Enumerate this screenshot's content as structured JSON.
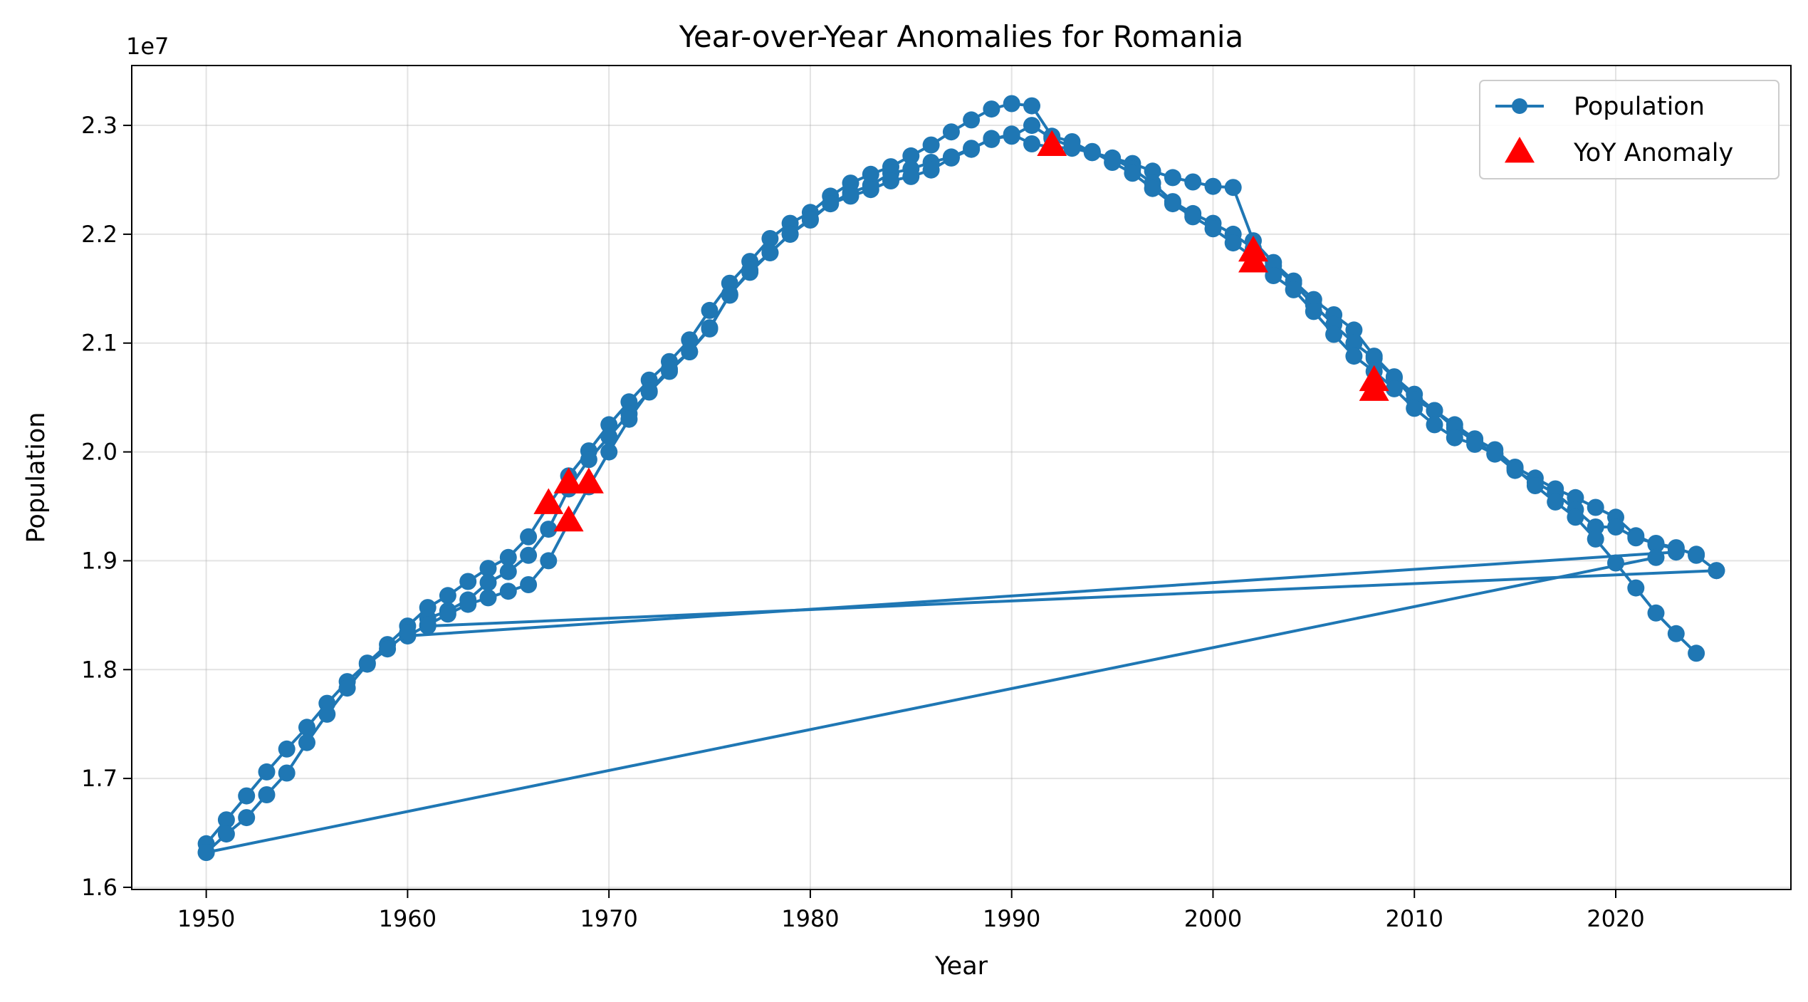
{
  "chart_data": {
    "type": "line",
    "title": "Year-over-Year Anomalies for Romania",
    "xlabel": "Year",
    "ylabel": "Population",
    "y_offset_label": "1e7",
    "xlim": [
      1946.3,
      2028.7
    ],
    "ylim": [
      15980000,
      23550000
    ],
    "x_ticks": [
      1950,
      1960,
      1970,
      1980,
      1990,
      2000,
      2010,
      2020
    ],
    "x_tick_labels": [
      "1950",
      "1960",
      "1970",
      "1980",
      "1990",
      "2000",
      "2010",
      "2020"
    ],
    "y_ticks": [
      16000000,
      17000000,
      18000000,
      19000000,
      20000000,
      21000000,
      22000000,
      23000000
    ],
    "y_tick_labels": [
      "1.6",
      "1.7",
      "1.8",
      "1.9",
      "2.0",
      "2.1",
      "2.2",
      "2.3"
    ],
    "grid": true,
    "legend_position": "top-right",
    "colors": {
      "line": "#1f77b4",
      "anomaly": "#ff0000"
    },
    "series": [
      {
        "name": "Population",
        "marker": "circle",
        "segments": [
          {
            "x": [
              1950,
              1951,
              1952,
              1953,
              1954,
              1955,
              1956,
              1957,
              1958,
              1959,
              1960,
              1961,
              1962,
              1963,
              1964,
              1965,
              1966,
              1967,
              1968,
              1969,
              1970,
              1971,
              1972,
              1973,
              1974,
              1975,
              1976,
              1977,
              1978,
              1979,
              1980,
              1981,
              1982,
              1983,
              1984,
              1985,
              1986,
              1987,
              1988,
              1989,
              1990,
              1991,
              1992,
              1993,
              1994,
              1995,
              1996,
              1997,
              1998,
              1999,
              2000,
              2001,
              2002,
              2003,
              2004,
              2005,
              2006,
              2007,
              2008,
              2009,
              2010,
              2011,
              2012,
              2013,
              2014,
              2015,
              2016,
              2017,
              2018,
              2019,
              2020,
              2021,
              2022,
              2023,
              2024
            ],
            "y": [
              16400000,
              16620000,
              16840000,
              17060000,
              17270000,
              17470000,
              17690000,
              17890000,
              18060000,
              18230000,
              18400000,
              18570000,
              18680000,
              18810000,
              18930000,
              19030000,
              19220000,
              19510000,
              19780000,
              20010000,
              20250000,
              20460000,
              20660000,
              20830000,
              21030000,
              21300000,
              21550000,
              21750000,
              21960000,
              22100000,
              22200000,
              22350000,
              22470000,
              22550000,
              22620000,
              22720000,
              22820000,
              22940000,
              23050000,
              23150000,
              23200000,
              23180000,
              22900000,
              22850000,
              22750000,
              22700000,
              22650000,
              22580000,
              22520000,
              22480000,
              22440000,
              22430000,
              21940000,
              21740000,
              21570000,
              21400000,
              21260000,
              21120000,
              20880000,
              20690000,
              20530000,
              20380000,
              20250000,
              20120000,
              20020000,
              19860000,
              19760000,
              19660000,
              19580000,
              19490000,
              19400000,
              19230000,
              19150000,
              19110000,
              19060000
            ]
          },
          {
            "x": [
              2025,
              1961
            ],
            "y": [
              18910000,
              18400000
            ]
          },
          {
            "x": [
              1961,
              1962,
              1963,
              1964,
              1965,
              1966,
              1967,
              1968,
              1969,
              1970,
              1971,
              1972,
              1973,
              1974,
              1975,
              1976,
              1977,
              1978,
              1979,
              1980,
              1981,
              1982,
              1983,
              1984,
              1985,
              1986,
              1987,
              1988,
              1989,
              1990,
              1991,
              1992,
              1993,
              1994,
              1995,
              1996,
              1997,
              1998,
              1999,
              2000,
              2001,
              2002,
              2003,
              2004,
              2005,
              2006,
              2007,
              2008,
              2009,
              2010,
              2011,
              2012,
              2013,
              2014,
              2015,
              2016,
              2017,
              2018,
              2019,
              2020,
              2021,
              2022,
              2023,
              2024,
              2025
            ],
            "y": [
              18470000,
              18540000,
              18640000,
              18800000,
              18900000,
              19050000,
              19290000,
              19660000,
              19930000,
              20140000,
              20350000,
              20550000,
              20740000,
              20920000,
              21130000,
              21450000,
              21650000,
              21830000,
              22000000,
              22140000,
              22280000,
              22380000,
              22450000,
              22560000,
              22600000,
              22660000,
              22710000,
              22790000,
              22870000,
              22920000,
              22830000,
              22800000,
              22790000,
              22750000,
              22700000,
              22600000,
              22470000,
              22300000,
              22190000,
              22100000,
              22000000,
              21870000,
              21710000,
              21550000,
              21350000,
              21170000,
              21000000,
              20860000,
              20680000,
              20480000,
              20380000,
              20220000,
              20100000,
              19980000,
              19830000,
              19720000,
              19620000,
              19470000,
              19310000,
              19310000,
              19210000,
              19160000,
              19120000,
              19050000,
              18910000
            ]
          },
          {
            "x": [
              2023,
              1960
            ],
            "y": [
              19080000,
              18310000
            ]
          },
          {
            "x": [
              1960,
              1961,
              1962,
              1963,
              1964,
              1965,
              1966,
              1967,
              1968,
              1969,
              1970,
              1971,
              1972,
              1973,
              1974,
              1975,
              1976,
              1977,
              1978,
              1979,
              1980,
              1981,
              1982,
              1983,
              1984,
              1985,
              1986,
              1987,
              1988,
              1989,
              1990,
              1991,
              1992,
              1993,
              1994,
              1995,
              1996,
              1997,
              1998,
              1999,
              2000,
              2001,
              2002,
              2003,
              2004,
              2005,
              2006,
              2007,
              2008,
              2009,
              2010,
              2011,
              2012,
              2013,
              2014,
              2015,
              2016,
              2017,
              2018,
              2019,
              2020,
              2021,
              2022,
              2023,
              2024
            ],
            "y": [
              18310000,
              18410000,
              18510000,
              18600000,
              18660000,
              18720000,
              18780000,
              19000000,
              19350000,
              19680000,
              20000000,
              20300000,
              20560000,
              20760000,
              20920000,
              21140000,
              21440000,
              21670000,
              21830000,
              22000000,
              22130000,
              22280000,
              22350000,
              22410000,
              22490000,
              22530000,
              22590000,
              22700000,
              22780000,
              22880000,
              22900000,
              23000000,
              22880000,
              22800000,
              22760000,
              22660000,
              22560000,
              22420000,
              22280000,
              22160000,
              22050000,
              21920000,
              21790000,
              21620000,
              21490000,
              21290000,
              21080000,
              20880000,
              20740000,
              20580000,
              20400000,
              20250000,
              20130000,
              20070000,
              19980000,
              19850000,
              19690000,
              19540000,
              19400000,
              19200000,
              18980000,
              18750000,
              18520000,
              18330000,
              18150000
            ]
          },
          {
            "x": [
              2022,
              1950
            ],
            "y": [
              19030000,
              16320000
            ]
          },
          {
            "x": [
              1950,
              1951,
              1952,
              1953,
              1954,
              1955,
              1956,
              1957,
              1958,
              1959,
              1960
            ],
            "y": [
              16320000,
              16490000,
              16640000,
              16850000,
              17050000,
              17330000,
              17590000,
              17830000,
              18050000,
              18190000,
              18340000
            ]
          }
        ]
      },
      {
        "name": "YoY Anomaly",
        "marker": "triangle",
        "x": [
          1967,
          1968,
          1968,
          1969,
          1992,
          2002,
          2002,
          2008,
          2008
        ],
        "y": [
          19510000,
          19350000,
          19700000,
          19700000,
          22800000,
          21830000,
          21730000,
          20640000,
          20550000
        ]
      }
    ]
  }
}
